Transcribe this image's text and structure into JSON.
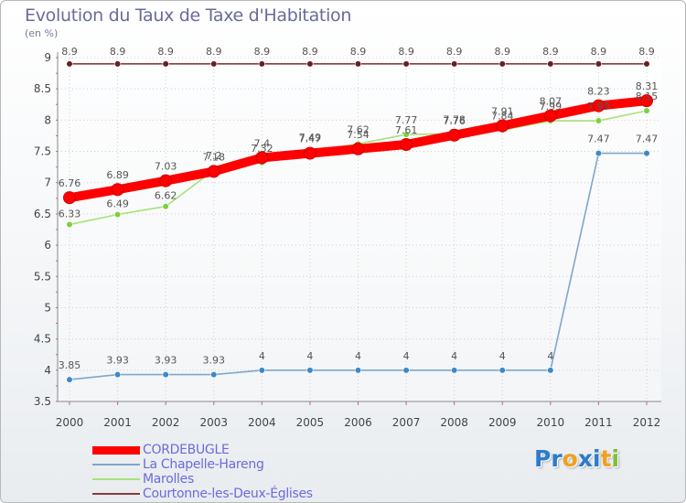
{
  "chart_data": {
    "type": "line",
    "title": "Evolution du Taux de Taxe d'Habitation",
    "ylabel": "(en %)",
    "xlabel": "",
    "ylim": [
      3.5,
      9
    ],
    "yticks": [
      "3.5",
      "4",
      "4.5",
      "5",
      "5.5",
      "6",
      "6.5",
      "7",
      "7.5",
      "8",
      "8.5",
      "9"
    ],
    "categories": [
      "2000",
      "2001",
      "2002",
      "2003",
      "2004",
      "2005",
      "2006",
      "2007",
      "2008",
      "2009",
      "2010",
      "2011",
      "2012"
    ],
    "series": [
      {
        "name": "CORDEBUGLE",
        "color": "#ff0000",
        "marker": "#ff0000",
        "thick": true,
        "values": [
          6.76,
          6.89,
          7.03,
          7.18,
          7.4,
          7.47,
          7.54,
          7.61,
          7.76,
          7.91,
          8.07,
          8.23,
          8.31
        ],
        "labels": [
          "6.76",
          "6.89",
          "7.03",
          "7.18",
          "7.4",
          "7.47",
          "7.54",
          "7.61",
          "7.76",
          "7.91",
          "8.07",
          "8.23",
          "8.31"
        ]
      },
      {
        "name": "La Chapelle-Hareng",
        "color": "#7ea6cc",
        "marker": "#3f88c5",
        "thick": false,
        "values": [
          3.85,
          3.93,
          3.93,
          3.93,
          4,
          4,
          4,
          4,
          4,
          4,
          4,
          7.47,
          7.47
        ],
        "labels": [
          "3.85",
          "3.93",
          "3.93",
          "3.93",
          "4",
          "4",
          "4",
          "4",
          "4",
          "4",
          "4",
          "7.47",
          "7.47"
        ]
      },
      {
        "name": "Marolles",
        "color": "#a6e37a",
        "marker": "#7cd13f",
        "thick": false,
        "values": [
          6.33,
          6.49,
          6.62,
          7.2,
          7.32,
          7.49,
          7.62,
          7.77,
          7.78,
          7.84,
          7.99,
          7.99,
          8.15
        ],
        "labels": [
          "6.33",
          "6.49",
          "6.62",
          "7.2",
          "7.32",
          "7.49",
          "7.62",
          "7.77",
          "7.78",
          "7.84",
          "7.99",
          "7.99",
          "8.15"
        ]
      },
      {
        "name": "Courtonne-les-Deux-Églises",
        "color": "#8a3a3a",
        "marker": "#6b1e1e",
        "thick": false,
        "values": [
          8.9,
          8.9,
          8.9,
          8.9,
          8.9,
          8.9,
          8.9,
          8.9,
          8.9,
          8.9,
          8.9,
          8.9,
          8.9
        ],
        "labels": [
          "8.9",
          "8.9",
          "8.9",
          "8.9",
          "8.9",
          "8.9",
          "8.9",
          "8.9",
          "8.9",
          "8.9",
          "8.9",
          "8.9",
          "8.9"
        ]
      }
    ],
    "legend": [
      "CORDEBUGLE",
      "La Chapelle-Hareng",
      "Marolles",
      "Courtonne-les-Deux-Églises"
    ],
    "legend_position": "bottom-left"
  },
  "brand": {
    "name": "Proxiti",
    "letters": [
      "P",
      "r",
      "o",
      "x",
      "i",
      "t",
      "i"
    ],
    "letter_colors": [
      "#2b7cc9",
      "#2b7cc9",
      "#f0a020",
      "#2b7cc9",
      "#2b7cc9",
      "#f0a020",
      "#7cbf3a"
    ]
  }
}
